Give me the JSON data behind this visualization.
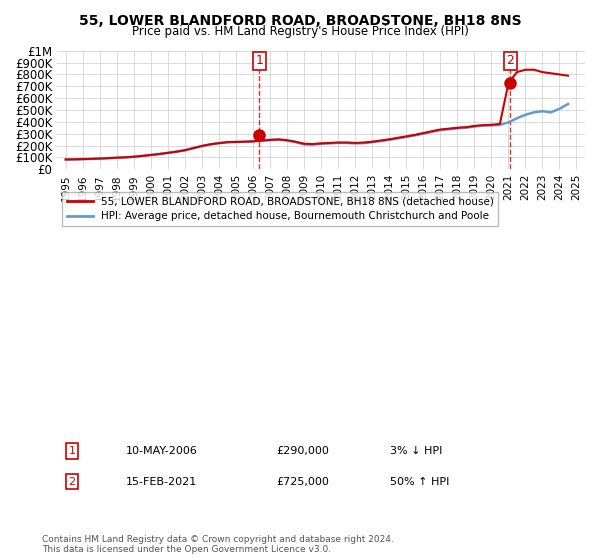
{
  "title": "55, LOWER BLANDFORD ROAD, BROADSTONE, BH18 8NS",
  "subtitle": "Price paid vs. HM Land Registry's House Price Index (HPI)",
  "footnote": "Contains HM Land Registry data © Crown copyright and database right 2024.\nThis data is licensed under the Open Government Licence v3.0.",
  "legend_label_red": "55, LOWER BLANDFORD ROAD, BROADSTONE, BH18 8NS (detached house)",
  "legend_label_blue": "HPI: Average price, detached house, Bournemouth Christchurch and Poole",
  "transactions": [
    {
      "label": "1",
      "date": "10-MAY-2006",
      "price": 290000,
      "pct": "3%",
      "direction": "↓",
      "x_year": 2006.36
    },
    {
      "label": "2",
      "date": "15-FEB-2021",
      "price": 725000,
      "pct": "50%",
      "direction": "↑",
      "x_year": 2021.12
    }
  ],
  "hpi_years": [
    1995,
    1995.5,
    1996,
    1996.5,
    1997,
    1997.5,
    1998,
    1998.5,
    1999,
    1999.5,
    2000,
    2000.5,
    2001,
    2001.5,
    2002,
    2002.5,
    2003,
    2003.5,
    2004,
    2004.5,
    2005,
    2005.5,
    2006,
    2006.5,
    2007,
    2007.5,
    2008,
    2008.5,
    2009,
    2009.5,
    2010,
    2010.5,
    2011,
    2011.5,
    2012,
    2012.5,
    2013,
    2013.5,
    2014,
    2014.5,
    2015,
    2015.5,
    2016,
    2016.5,
    2017,
    2017.5,
    2018,
    2018.5,
    2019,
    2019.5,
    2020,
    2020.5,
    2021,
    2021.5,
    2022,
    2022.5,
    2023,
    2023.5,
    2024,
    2024.5
  ],
  "hpi_values": [
    82000,
    83000,
    85000,
    87000,
    90000,
    93000,
    97000,
    100000,
    105000,
    112000,
    120000,
    128000,
    138000,
    148000,
    160000,
    178000,
    196000,
    210000,
    220000,
    228000,
    230000,
    232000,
    235000,
    240000,
    245000,
    248000,
    242000,
    228000,
    210000,
    208000,
    215000,
    218000,
    222000,
    222000,
    218000,
    220000,
    228000,
    238000,
    248000,
    260000,
    272000,
    285000,
    300000,
    315000,
    330000,
    338000,
    345000,
    350000,
    360000,
    368000,
    370000,
    375000,
    395000,
    430000,
    460000,
    480000,
    490000,
    480000,
    510000,
    550000
  ],
  "price_years": [
    1995,
    1995.5,
    1996,
    1996.5,
    1997,
    1997.5,
    1998,
    1998.5,
    1999,
    1999.5,
    2000,
    2000.5,
    2001,
    2001.5,
    2002,
    2002.5,
    2003,
    2003.5,
    2004,
    2004.5,
    2005,
    2005.5,
    2006,
    2006.5,
    2007,
    2007.5,
    2008,
    2008.5,
    2009,
    2009.5,
    2010,
    2010.5,
    2011,
    2011.5,
    2012,
    2012.5,
    2013,
    2013.5,
    2014,
    2014.5,
    2015,
    2015.5,
    2016,
    2016.5,
    2017,
    2017.5,
    2018,
    2018.5,
    2019,
    2019.5,
    2020,
    2020.5,
    2021,
    2021.5,
    2022,
    2022.5,
    2023,
    2023.5,
    2024,
    2024.5
  ],
  "price_values": [
    82000,
    83000,
    85000,
    87000,
    90000,
    93000,
    97000,
    100000,
    105000,
    112000,
    120000,
    128000,
    138000,
    148000,
    160000,
    178000,
    196000,
    210000,
    220000,
    228000,
    230000,
    232000,
    235000,
    242000,
    248000,
    252000,
    245000,
    232000,
    215000,
    212000,
    218000,
    222000,
    225000,
    225000,
    222000,
    225000,
    232000,
    242000,
    252000,
    265000,
    277000,
    290000,
    305000,
    320000,
    335000,
    342000,
    350000,
    355000,
    365000,
    372000,
    375000,
    382000,
    725000,
    820000,
    840000,
    840000,
    820000,
    810000,
    800000,
    790000
  ],
  "ylim": [
    0,
    1000000
  ],
  "xlim": [
    1994.5,
    2025.5
  ],
  "yticks": [
    0,
    100000,
    200000,
    300000,
    400000,
    500000,
    600000,
    700000,
    800000,
    900000,
    1000000
  ],
  "xticks": [
    1995,
    1996,
    1997,
    1998,
    1999,
    2000,
    2001,
    2002,
    2003,
    2004,
    2005,
    2006,
    2007,
    2008,
    2009,
    2010,
    2011,
    2012,
    2013,
    2014,
    2015,
    2016,
    2017,
    2018,
    2019,
    2020,
    2021,
    2022,
    2023,
    2024,
    2025
  ],
  "color_red": "#cc0000",
  "color_blue": "#6699cc",
  "color_grid": "#cccccc",
  "color_bg": "#ffffff",
  "marker_color_1": "#cc0000",
  "marker_color_2": "#cc0000",
  "vline_color": "#cc0000",
  "box_color": "#cc0000"
}
